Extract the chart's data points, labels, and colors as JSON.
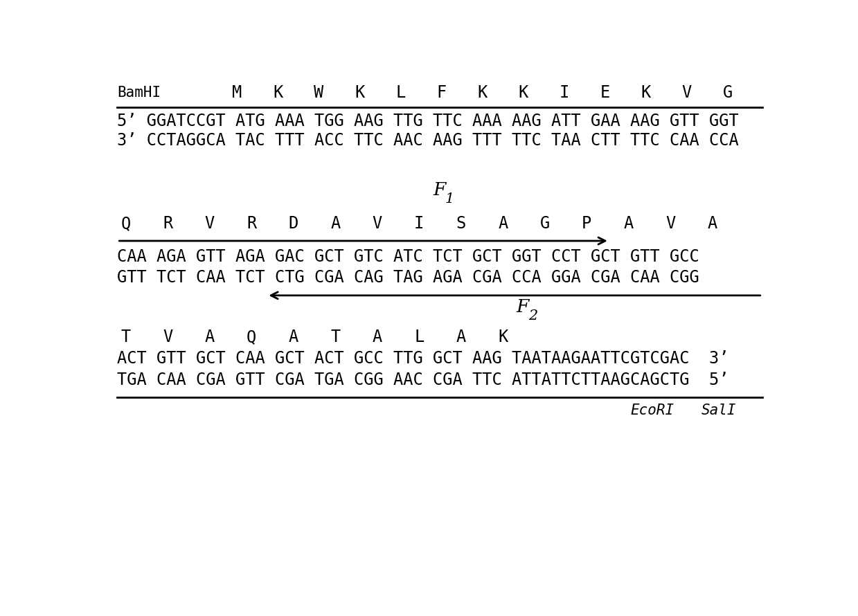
{
  "bg_color": "#ffffff",
  "text_color": "#000000",
  "figsize": [
    12.39,
    8.9
  ],
  "dpi": 100,
  "row1_label": "BamHI",
  "row1_5prime": "5’ GGATCCGT ATG AAA TGG AAG TTG TTC AAA AAG ATT GAA AAG GTT GGT",
  "row1_3prime": "3’ CCTAGGCA TAC TTT ACC TTC AAC AAG TTT TTC TAA CTT TTC CAA CCA",
  "F1_label": "F",
  "F1_sub": "1",
  "row2_5prime": "CAA AGA GTT AGA GAC GCT GTC ATC TCT GCT GGT CCT GCT GTT GCC",
  "row2_3prime": "GTT TCT CAA TCT CTG CGA CAG TAG AGA CGA CCA GGA CGA CAA CGG",
  "F2_label": "F",
  "F2_sub": "2",
  "row3_5prime": "ACT GTT GCT CAA GCT ACT GCC TTG GCT AAG TAATAAGAATTCGTCGAC  3’",
  "row3_3prime": "TGA CAA CGA GTT CGA TGA CGG AAC CGA TTC ATTATTCTTAAGCAGCTG  5’",
  "row3_end_label1": "EcoRI",
  "row3_end_label2": "SalI",
  "amino1": [
    "M",
    "K",
    "W",
    "K",
    "L",
    "F",
    "K",
    "K",
    "I",
    "E",
    "K",
    "V",
    "G"
  ],
  "amino2": [
    "Q",
    "R",
    "V",
    "R",
    "D",
    "A",
    "V",
    "I",
    "S",
    "A",
    "G",
    "P",
    "A",
    "V",
    "A"
  ],
  "amino3": [
    "T",
    "V",
    "A",
    "Q",
    "A",
    "T",
    "A",
    "L",
    "A",
    "K"
  ],
  "font_family": "monospace",
  "amino_fontsize": 17,
  "dna_fontsize": 17,
  "label_fontsize": 15,
  "F_fontsize": 17
}
